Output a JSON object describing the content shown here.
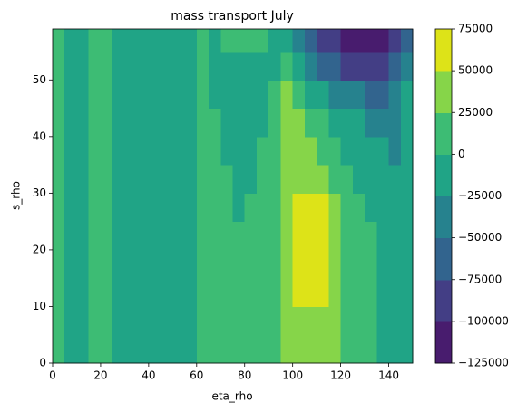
{
  "chart_data": {
    "type": "contourf",
    "title": "mass transport July",
    "xlabel": "eta_rho",
    "ylabel": "s_rho",
    "xlim": [
      0,
      150
    ],
    "ylim": [
      0,
      59
    ],
    "xticks": [
      0,
      20,
      40,
      60,
      80,
      100,
      120,
      140
    ],
    "yticks": [
      0,
      10,
      20,
      30,
      40,
      50
    ],
    "x_edges": [
      0,
      5,
      10,
      15,
      20,
      25,
      30,
      35,
      40,
      45,
      50,
      55,
      60,
      65,
      70,
      75,
      80,
      85,
      90,
      95,
      100,
      105,
      110,
      115,
      120,
      125,
      130,
      135,
      140,
      145,
      150
    ],
    "y_edges": [
      0,
      5,
      10,
      15,
      20,
      25,
      30,
      35,
      40,
      45,
      50,
      55,
      59
    ],
    "levels": [
      {
        "value": -125000,
        "label": "−125000"
      },
      {
        "value": -100000,
        "label": "−100000"
      },
      {
        "value": -75000,
        "label": "−75000"
      },
      {
        "value": -50000,
        "label": "−50000"
      },
      {
        "value": -25000,
        "label": "−25000"
      },
      0,
      25000,
      50000,
      75000
    ],
    "colors": [
      "#481c6e",
      "#433e85",
      "#32648e",
      "#26828e",
      "#20a486",
      "#3dbc74",
      "#86d549",
      "#dde318"
    ],
    "z": [
      [
        12500,
        -12500,
        -12500,
        12500,
        12500,
        -12500,
        -12500,
        -12500,
        -12500,
        -12500,
        -12500,
        -12500,
        12500,
        12500,
        12500,
        12500,
        12500,
        12500,
        12500,
        37500,
        37500,
        37500,
        37500,
        37500,
        12500,
        12500,
        12500,
        -12500,
        -12500,
        -12500
      ],
      [
        12500,
        -12500,
        -12500,
        12500,
        12500,
        -12500,
        -12500,
        -12500,
        -12500,
        -12500,
        -12500,
        -12500,
        12500,
        12500,
        12500,
        12500,
        12500,
        12500,
        12500,
        37500,
        37500,
        37500,
        37500,
        37500,
        12500,
        12500,
        12500,
        -12500,
        -12500,
        -12500
      ],
      [
        12500,
        -12500,
        -12500,
        12500,
        12500,
        -12500,
        -12500,
        -12500,
        -12500,
        -12500,
        -12500,
        -12500,
        12500,
        12500,
        12500,
        12500,
        12500,
        12500,
        12500,
        37500,
        62500,
        62500,
        62500,
        37500,
        12500,
        12500,
        12500,
        -12500,
        -12500,
        -12500
      ],
      [
        12500,
        -12500,
        -12500,
        12500,
        12500,
        -12500,
        -12500,
        -12500,
        -12500,
        -12500,
        -12500,
        -12500,
        12500,
        12500,
        12500,
        12500,
        12500,
        12500,
        12500,
        37500,
        62500,
        62500,
        62500,
        37500,
        12500,
        12500,
        12500,
        -12500,
        -12500,
        -12500
      ],
      [
        12500,
        -12500,
        -12500,
        12500,
        12500,
        -12500,
        -12500,
        -12500,
        -12500,
        -12500,
        -12500,
        -12500,
        12500,
        12500,
        12500,
        12500,
        12500,
        12500,
        12500,
        37500,
        62500,
        62500,
        62500,
        37500,
        12500,
        12500,
        12500,
        -12500,
        -12500,
        -12500
      ],
      [
        12500,
        -12500,
        -12500,
        12500,
        12500,
        -12500,
        -12500,
        -12500,
        -12500,
        -12500,
        -12500,
        -12500,
        12500,
        12500,
        12500,
        -12500,
        12500,
        12500,
        12500,
        37500,
        62500,
        62500,
        62500,
        37500,
        12500,
        12500,
        -12500,
        -12500,
        -12500,
        -12500
      ],
      [
        12500,
        -12500,
        -12500,
        12500,
        12500,
        -12500,
        -12500,
        -12500,
        -12500,
        -12500,
        -12500,
        -12500,
        12500,
        12500,
        12500,
        -12500,
        -12500,
        12500,
        12500,
        37500,
        37500,
        37500,
        37500,
        12500,
        12500,
        -12500,
        -12500,
        -12500,
        -12500,
        -12500
      ],
      [
        12500,
        -12500,
        -12500,
        12500,
        12500,
        -12500,
        -12500,
        -12500,
        -12500,
        -12500,
        -12500,
        -12500,
        12500,
        12500,
        -12500,
        -12500,
        -12500,
        12500,
        12500,
        37500,
        37500,
        37500,
        12500,
        12500,
        -12500,
        -12500,
        -12500,
        -12500,
        -37500,
        -12500
      ],
      [
        12500,
        -12500,
        -12500,
        12500,
        12500,
        -12500,
        -12500,
        -12500,
        -12500,
        -12500,
        -12500,
        -12500,
        12500,
        12500,
        -12500,
        -12500,
        -12500,
        -12500,
        12500,
        37500,
        37500,
        12500,
        12500,
        -12500,
        -12500,
        -12500,
        -37500,
        -37500,
        -37500,
        -12500
      ],
      [
        12500,
        -12500,
        -12500,
        12500,
        12500,
        -12500,
        -12500,
        -12500,
        -12500,
        -12500,
        -12500,
        -12500,
        12500,
        -12500,
        -12500,
        -12500,
        -12500,
        -12500,
        12500,
        37500,
        12500,
        -12500,
        -12500,
        -37500,
        -37500,
        -37500,
        -62500,
        -62500,
        -37500,
        -12500
      ],
      [
        12500,
        -12500,
        -12500,
        12500,
        12500,
        -12500,
        -12500,
        -12500,
        -12500,
        -12500,
        -12500,
        -12500,
        12500,
        -12500,
        -12500,
        -12500,
        -12500,
        -12500,
        -12500,
        12500,
        -12500,
        -37500,
        -62500,
        -62500,
        -87500,
        -87500,
        -87500,
        -87500,
        -62500,
        -37500
      ],
      [
        12500,
        -12500,
        -12500,
        12500,
        12500,
        -12500,
        -12500,
        -12500,
        -12500,
        -12500,
        -12500,
        -12500,
        12500,
        -12500,
        12500,
        12500,
        12500,
        12500,
        -12500,
        -12500,
        -37500,
        -62500,
        -87500,
        -87500,
        -112500,
        -112500,
        -112500,
        -112500,
        -87500,
        -62500
      ]
    ]
  }
}
